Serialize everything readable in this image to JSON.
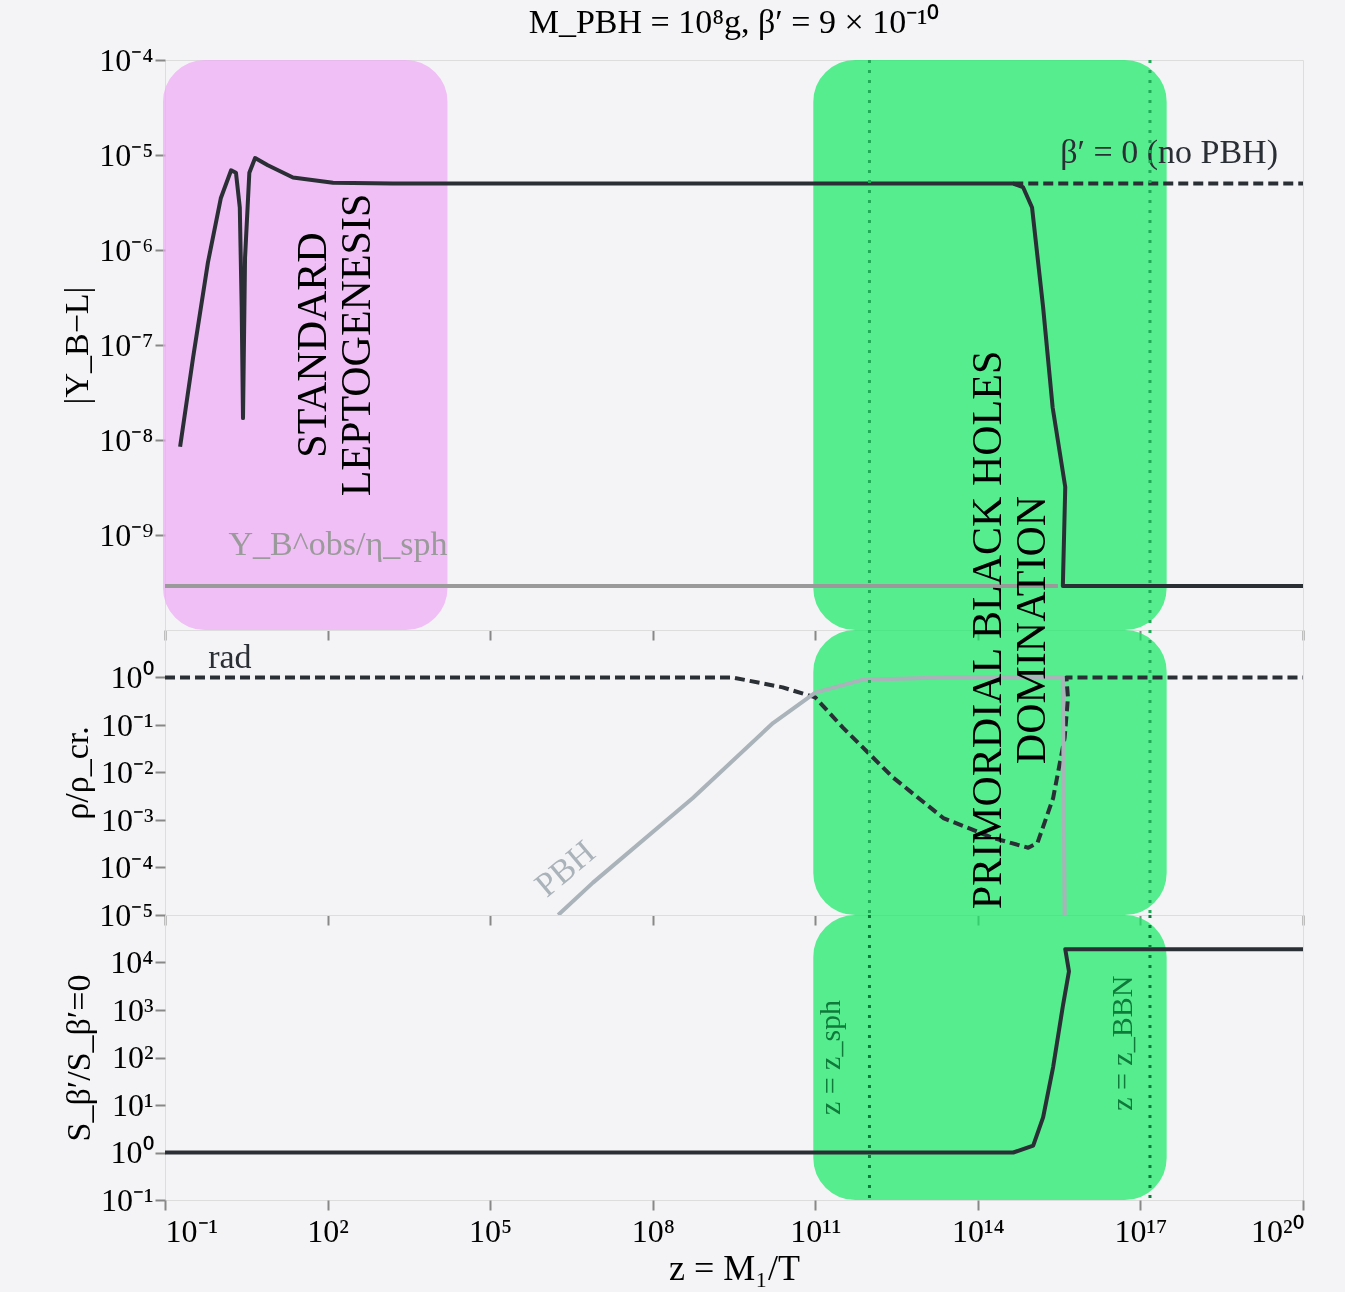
{
  "chart_data": [
    {
      "type": "line",
      "title": "M_PBH = 10⁸g,  β′ = 9 × 10⁻¹⁰",
      "ylabel": "|Y_B−L|",
      "log": "xy",
      "grid": false,
      "tick_labels": "y",
      "xlim": [
        0.1,
        1e+20
      ],
      "ylim": [
        1e-10,
        0.0001
      ],
      "xticks": [
        {
          "value": 0.1,
          "label": null
        },
        {
          "value": 100,
          "label": null
        },
        {
          "value": 100000.0,
          "label": null
        },
        {
          "value": 100000000.0,
          "label": null
        },
        {
          "value": 100000000000.0,
          "label": null
        },
        {
          "value": 100000000000000.0,
          "label": null
        },
        {
          "value": 1e+17,
          "label": null
        },
        {
          "value": 1e+20,
          "label": null
        }
      ],
      "yticks": [
        {
          "value": 0.0001,
          "label": "10⁻⁴"
        },
        {
          "value": 1e-05,
          "label": "10⁻⁵"
        },
        {
          "value": 1e-06,
          "label": "10⁻⁶"
        },
        {
          "value": 1e-07,
          "label": "10⁻⁷"
        },
        {
          "value": 1e-08,
          "label": "10⁻⁸"
        },
        {
          "value": 1e-09,
          "label": "10⁻⁹"
        }
      ],
      "series": [
        {
          "name": "Y_B^obs/η_sph",
          "color": "#9a9a9a",
          "x": [
            0.1,
            3000000000000000.0
          ],
          "values": [
            2.9e-10,
            2.9e-10
          ]
        },
        {
          "name": "β′ = 0 (no PBH)",
          "color": "#2a2e35",
          "line_style": "dashed",
          "x": [
            450000000000000.0,
            1e+20
          ],
          "values": [
            5e-06,
            5e-06
          ]
        },
        {
          "color": "#2a2e35",
          "x": [
            0.19,
            0.33,
            0.62,
            1.07,
            1.66,
            2.04,
            2.4,
            2.6,
            2.75,
            3.0,
            3.6,
            4.6,
            7.9,
            23,
            126,
            1600,
            450000000000000.0,
            680000000000000.0,
            1000000000000000.0,
            1600000000000000.0,
            2400000000000000.0,
            4100000000000000.0,
            3700000000000000.0,
            1e+20
          ],
          "values": [
            8.5e-09,
            7.4e-08,
            7.4e-07,
            3.5e-06,
            6.9e-06,
            6.5e-06,
            2.8e-06,
            2.5e-07,
            1.7e-08,
            8.3e-07,
            6.5e-06,
            9.3e-06,
            7.8e-06,
            5.8e-06,
            5.1e-06,
            5e-06,
            5e-06,
            4.6e-06,
            2.8e-06,
            2.5e-07,
            2.2e-08,
            3.2e-09,
            2.9e-10,
            2.9e-10
          ]
        }
      ],
      "ref_lines": [
        {
          "axis": "x",
          "value": 1000000000000.0,
          "color": "#1faa55",
          "line_style": "dotted"
        },
        {
          "axis": "x",
          "value": 1.5e+17,
          "color": "#1faa55",
          "line_style": "dotted"
        }
      ],
      "bands": [
        {
          "axis": "x",
          "from": 0.1,
          "to": 15000.0,
          "label": "STANDARD\nLEPTOGENESIS",
          "color": "#eeaaf5"
        },
        {
          "axis": "x",
          "from": 100000000000.0,
          "to": 2.8e+17,
          "color": "#14eb64"
        }
      ]
    },
    {
      "type": "line",
      "ylabel": "ρ/ρ_cr.",
      "log": "xy",
      "grid": false,
      "tick_labels": "y",
      "xlim": [
        0.1,
        1e+20
      ],
      "ylim": [
        1e-05,
        10
      ],
      "xticks": [
        {
          "value": 0.1,
          "label": null
        },
        {
          "value": 100,
          "label": null
        },
        {
          "value": 100000.0,
          "label": null
        },
        {
          "value": 100000000.0,
          "label": null
        },
        {
          "value": 100000000000.0,
          "label": null
        },
        {
          "value": 100000000000000.0,
          "label": null
        },
        {
          "value": 1e+17,
          "label": null
        },
        {
          "value": 1e+20,
          "label": null
        }
      ],
      "yticks": [
        {
          "value": 1,
          "label": "10⁰"
        },
        {
          "value": 0.1,
          "label": "10⁻¹"
        },
        {
          "value": 0.01,
          "label": "10⁻²"
        },
        {
          "value": 0.001,
          "label": "10⁻³"
        },
        {
          "value": 0.0001,
          "label": "10⁻⁴"
        },
        {
          "value": 1e-05,
          "label": "10⁻⁵"
        }
      ],
      "series": [
        {
          "name": "rad",
          "color": "#2a2e35",
          "line_style": "dashed",
          "x": [
            0.1,
            3000000000.0,
            25000000000.0,
            100000000000.0,
            320000000000.0,
            2700000000000.0,
            23000000000000.0,
            190000000000000.0,
            850000000000000.0,
            1260000000000000.0,
            2450000000000000.0,
            4000000000000000.0,
            4600000000000000.0,
            4300000000000000.0,
            1e+20
          ],
          "values": [
            1,
            1,
            0.62,
            0.38,
            0.089,
            0.0079,
            0.0011,
            0.00042,
            0.00026,
            0.00033,
            0.0029,
            0.054,
            0.38,
            1,
            1
          ]
        },
        {
          "name": "PBH",
          "color": "#aab2ba",
          "x": [
            1800000.0,
            7900000.0,
            550000000.0,
            16600000000.0,
            100000000000.0,
            760000000000.0,
            23000000000000.0,
            3700000000000000.0,
            4000000000000000.0
          ],
          "values": [
            1e-05,
            4.8e-05,
            0.0029,
            0.11,
            0.48,
            0.9,
            1,
            1,
            1e-05
          ]
        }
      ],
      "ref_lines": [
        {
          "axis": "x",
          "value": 1000000000000.0,
          "color": "#1faa55",
          "line_style": "dotted"
        },
        {
          "axis": "x",
          "value": 1.5e+17,
          "color": "#1faa55",
          "line_style": "dotted"
        }
      ],
      "bands": [
        {
          "axis": "x",
          "from": 100000000000.0,
          "to": 2.8e+17,
          "label": "PRIMORDIAL BLACK HOLES\nDOMINATION",
          "color": "#14eb64"
        }
      ]
    },
    {
      "type": "line",
      "ylabel": "S_β′/S_β′=0",
      "xlabel": "z = M₁/T",
      "log": "xy",
      "grid": false,
      "xlim": [
        0.1,
        1e+20
      ],
      "ylim": [
        0.1,
        100000.0
      ],
      "xticks": [
        {
          "value": 0.1,
          "label": "10⁻¹"
        },
        {
          "value": 100,
          "label": "10²"
        },
        {
          "value": 100000.0,
          "label": "10⁵"
        },
        {
          "value": 100000000.0,
          "label": "10⁸"
        },
        {
          "value": 100000000000.0,
          "label": "10¹¹"
        },
        {
          "value": 100000000000000.0,
          "label": "10¹⁴"
        },
        {
          "value": 1e+17,
          "label": "10¹⁷"
        },
        {
          "value": 1e+20,
          "label": "10²⁰"
        }
      ],
      "yticks": [
        {
          "value": 10000.0,
          "label": "10⁴"
        },
        {
          "value": 1000,
          "label": "10³"
        },
        {
          "value": 100,
          "label": "10²"
        },
        {
          "value": 10,
          "label": "10¹"
        },
        {
          "value": 1,
          "label": "10⁰"
        },
        {
          "value": 0.1,
          "label": "10⁻¹"
        }
      ],
      "series": [
        {
          "color": "#2a2e35",
          "x": [
            0.1,
            450000000000000.0,
            1050000000000000.0,
            1600000000000000.0,
            2450000000000000.0,
            3700000000000000.0,
            4800000000000000.0,
            4100000000000000.0,
            1e+20
          ],
          "values": [
            1,
            1,
            1.4,
            5.5,
            63,
            1200,
            6500,
            19000,
            19000
          ]
        }
      ],
      "ref_lines": [
        {
          "axis": "x",
          "value": 1000000000000.0,
          "label": "z = z_sph",
          "color": "#0f7a3a",
          "line_style": "dotted"
        },
        {
          "axis": "x",
          "value": 1.5e+17,
          "label": "z = z_BBN",
          "color": "#0f7a3a",
          "line_style": "dotted"
        }
      ],
      "bands": [
        {
          "axis": "x",
          "from": 100000000000.0,
          "to": 2.8e+17,
          "color": "#14eb64"
        }
      ]
    }
  ]
}
